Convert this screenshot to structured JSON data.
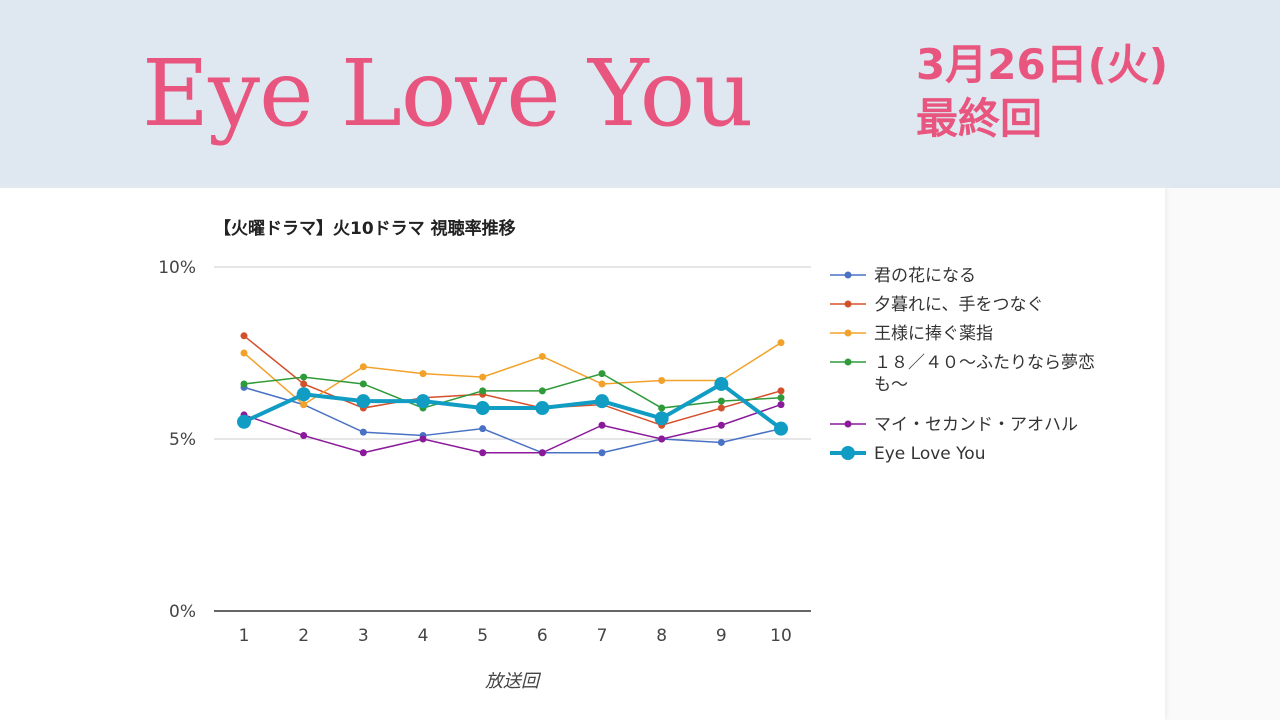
{
  "header": {
    "title": "Eye Love You",
    "date": "3月26日(火)",
    "subtitle": "最終回"
  },
  "chart_data": {
    "type": "line",
    "title": "【火曜ドラマ】火10ドラマ 視聴率推移",
    "xlabel": "放送回",
    "ylabel": "",
    "x": [
      1,
      2,
      3,
      4,
      5,
      6,
      7,
      8,
      9,
      10
    ],
    "ylim": [
      0,
      10
    ],
    "yticks": [
      "0%",
      "5%",
      "10%"
    ],
    "legend_position": "right",
    "series": [
      {
        "name": "君の花になる",
        "color": "#4a72c4",
        "values": [
          6.5,
          6.0,
          5.2,
          5.1,
          5.3,
          4.6,
          4.6,
          5.0,
          4.9,
          5.3
        ]
      },
      {
        "name": "夕暮れに、手をつなぐ",
        "color": "#d4502a",
        "values": [
          8.0,
          6.6,
          5.9,
          6.2,
          6.3,
          5.9,
          6.0,
          5.4,
          5.9,
          6.4
        ]
      },
      {
        "name": "王様に捧ぐ薬指",
        "color": "#f2a22a",
        "values": [
          7.5,
          6.0,
          7.1,
          6.9,
          6.8,
          7.4,
          6.6,
          6.7,
          6.7,
          7.8
        ]
      },
      {
        "name": "１８／４０～ふたりなら夢恋も～",
        "color": "#2e9a3a",
        "values": [
          6.6,
          6.8,
          6.6,
          5.9,
          6.4,
          6.4,
          6.9,
          5.9,
          6.1,
          6.2
        ]
      },
      {
        "name": "マイ・セカンド・アオハル",
        "color": "#8b1a9a",
        "values": [
          5.7,
          5.1,
          4.6,
          5.0,
          4.6,
          4.6,
          5.4,
          5.0,
          5.4,
          6.0
        ]
      },
      {
        "name": "Eye Love You",
        "color": "#119cc4",
        "values": [
          5.5,
          6.3,
          6.1,
          6.1,
          5.9,
          5.9,
          6.1,
          5.6,
          6.6,
          5.3
        ]
      }
    ]
  }
}
